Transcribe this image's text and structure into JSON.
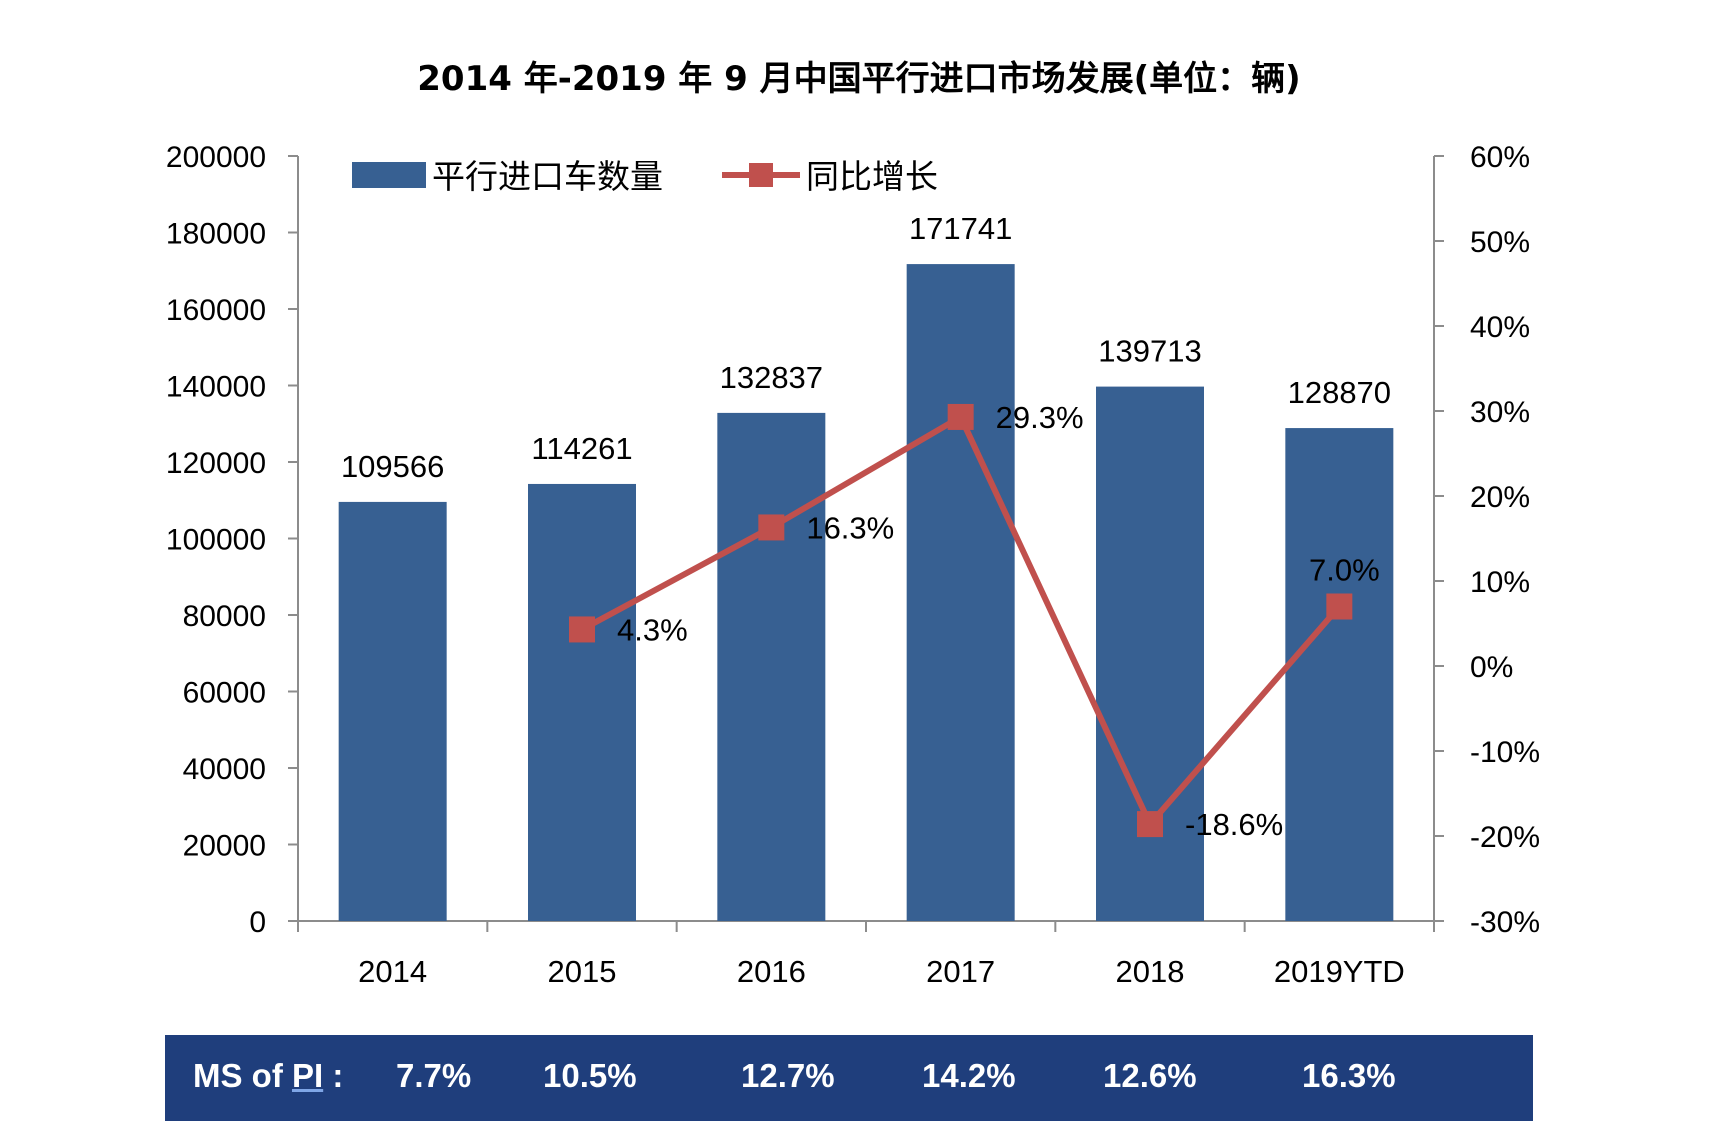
{
  "chart_data": {
    "type": "bar+line",
    "title": "2014 年-2019 年 9 月中国平行进口市场发展(单位：辆)",
    "categories": [
      "2014",
      "2015",
      "2016",
      "2017",
      "2018",
      "2019YTD"
    ],
    "series": [
      {
        "name": "平行进口车数量",
        "type": "bar",
        "axis": "left",
        "color": "#376092",
        "values": [
          109566,
          114261,
          132837,
          171741,
          139713,
          128870
        ],
        "labels": [
          "109566",
          "114261",
          "132837",
          "171741",
          "139713",
          "128870"
        ]
      },
      {
        "name": "同比增长",
        "type": "line",
        "axis": "right",
        "color": "#c0504d",
        "values": [
          null,
          4.3,
          16.3,
          29.3,
          -18.6,
          7.0
        ],
        "labels": [
          "",
          "4.3%",
          "16.3%",
          "29.3%",
          "-18.6%",
          "7.0%"
        ]
      }
    ],
    "y_left": {
      "ylim": [
        0,
        200000
      ],
      "ticks": [
        "0",
        "20000",
        "40000",
        "60000",
        "80000",
        "100000",
        "120000",
        "140000",
        "160000",
        "180000",
        "200000"
      ]
    },
    "y_right": {
      "ylim": [
        -30,
        60
      ],
      "ticks": [
        "-30%",
        "-20%",
        "-10%",
        "0%",
        "10%",
        "20%",
        "30%",
        "40%",
        "50%",
        "60%"
      ]
    },
    "grid": false,
    "legend": "top"
  },
  "ms_row": {
    "label": "MS of PI :",
    "label_main": "MS of ",
    "label_pi": "PI",
    "label_colon": " :",
    "values": [
      "7.7%",
      "10.5%",
      "12.7%",
      "14.2%",
      "12.6%",
      "16.3%"
    ]
  }
}
